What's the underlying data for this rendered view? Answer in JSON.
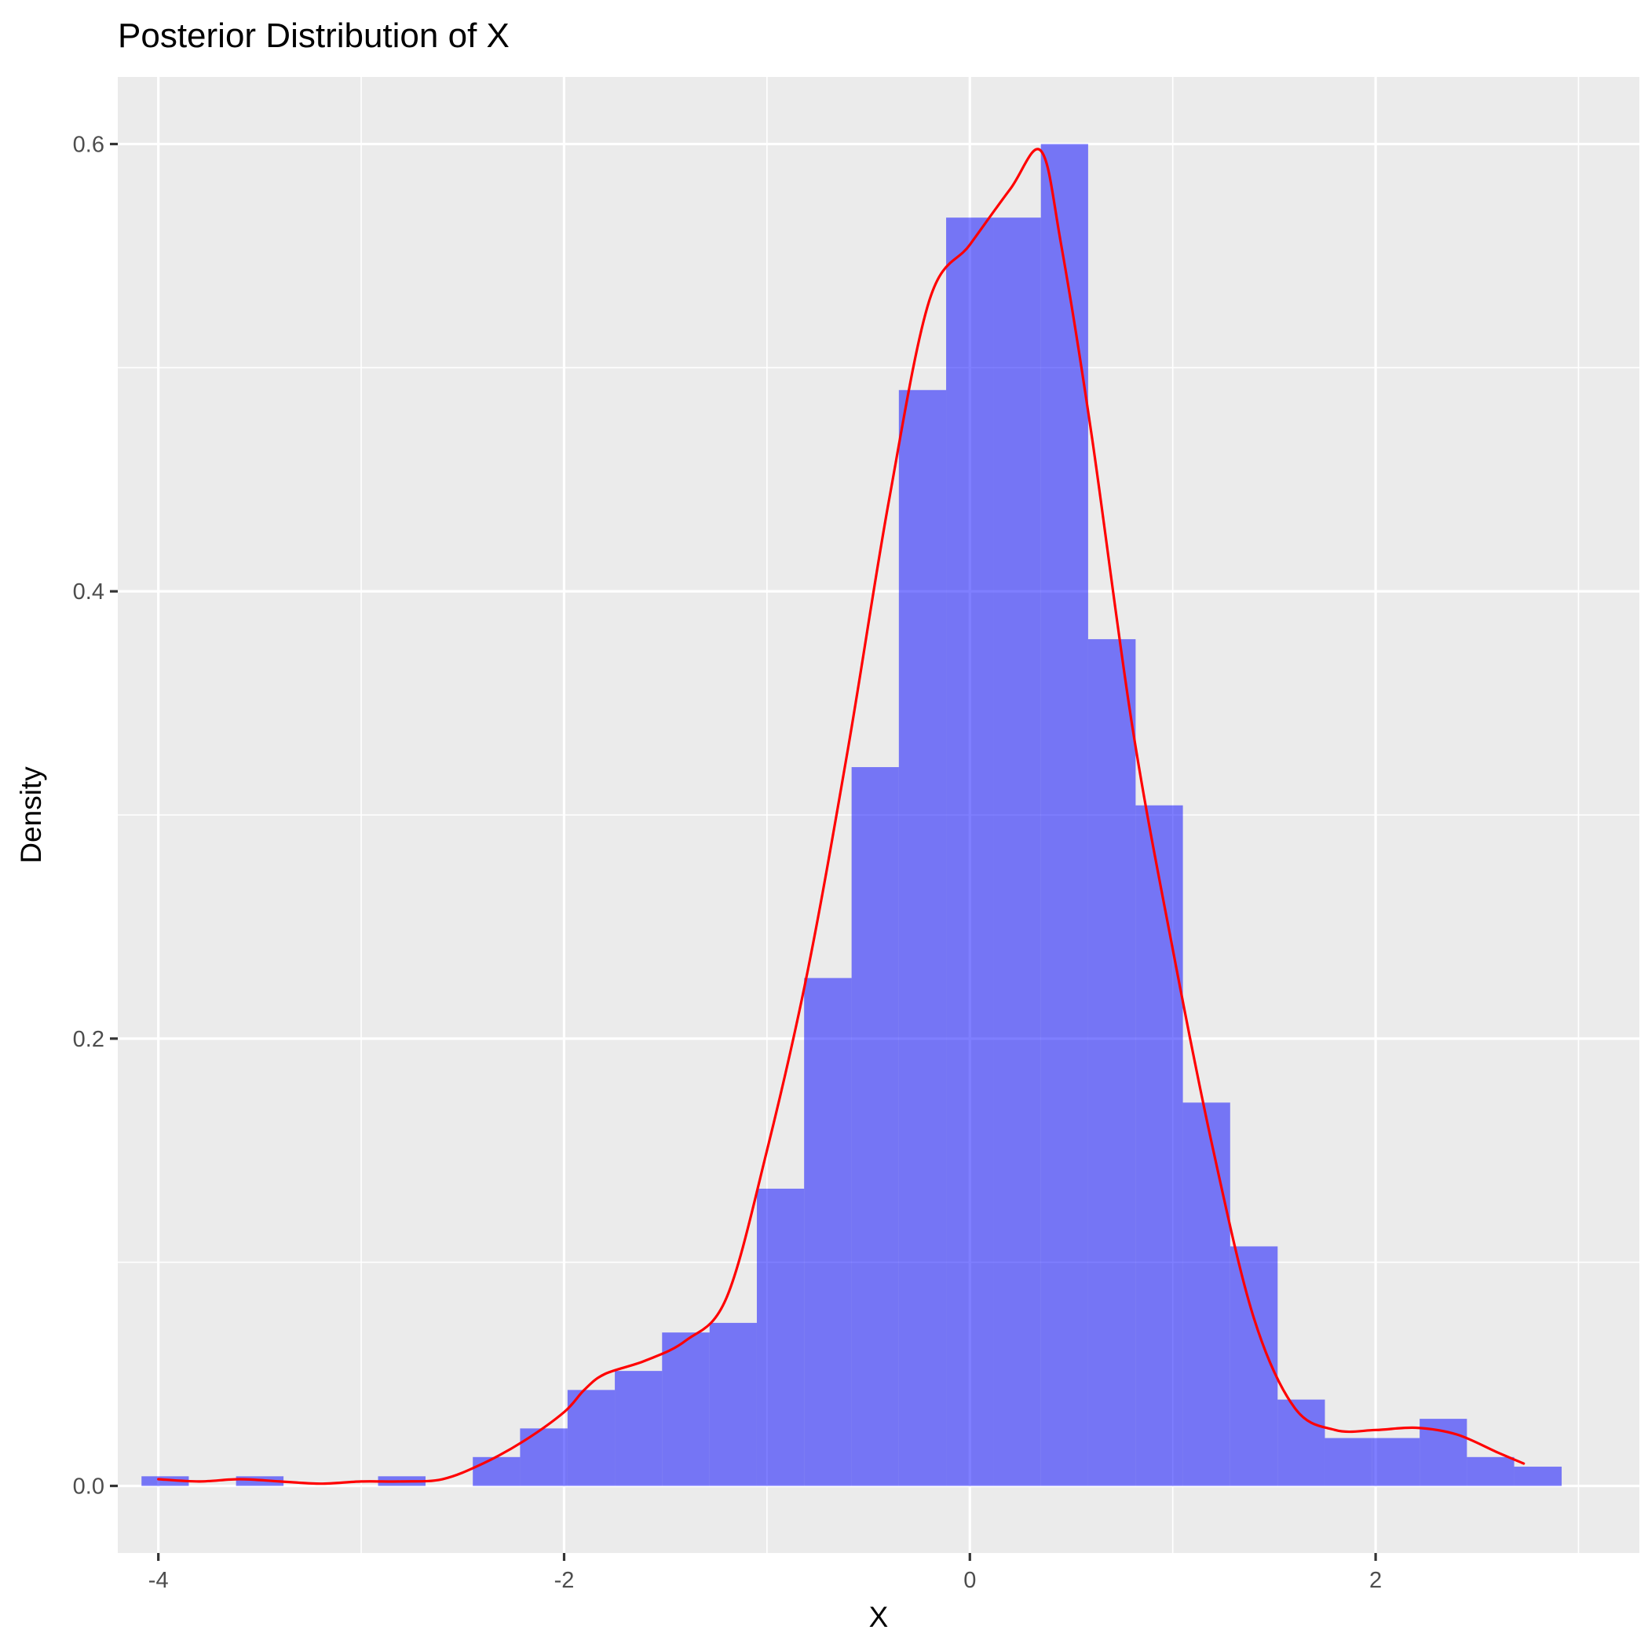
{
  "chart_data": {
    "type": "histogram",
    "title": "Posterior Distribution of X",
    "xlabel": "X",
    "ylabel": "Density",
    "xlim": [
      -4.2,
      3.3
    ],
    "ylim": [
      -0.03,
      0.63
    ],
    "x_ticks": [
      -4,
      -2,
      0,
      2
    ],
    "x_tick_labels": [
      "-4",
      "-2",
      "0",
      "2"
    ],
    "x_minor_ticks": [
      -3,
      -1,
      1,
      3
    ],
    "y_ticks": [
      0.0,
      0.2,
      0.4,
      0.6
    ],
    "y_tick_labels": [
      "0.0",
      "0.2",
      "0.4",
      "0.6"
    ],
    "y_minor_ticks": [
      0.1,
      0.3,
      0.5
    ],
    "grid": true,
    "bin_width": 0.2333,
    "bins": [
      {
        "x0": -4.083,
        "x1": -3.85,
        "density": 0.0043
      },
      {
        "x0": -3.617,
        "x1": -3.383,
        "density": 0.0043
      },
      {
        "x0": -2.917,
        "x1": -2.683,
        "density": 0.0043
      },
      {
        "x0": -2.45,
        "x1": -2.217,
        "density": 0.0129
      },
      {
        "x0": -2.217,
        "x1": -1.983,
        "density": 0.0257
      },
      {
        "x0": -1.983,
        "x1": -1.75,
        "density": 0.0429
      },
      {
        "x0": -1.75,
        "x1": -1.517,
        "density": 0.0514
      },
      {
        "x0": -1.517,
        "x1": -1.283,
        "density": 0.0686
      },
      {
        "x0": -1.283,
        "x1": -1.05,
        "density": 0.0729
      },
      {
        "x0": -1.05,
        "x1": -0.817,
        "density": 0.1329
      },
      {
        "x0": -0.817,
        "x1": -0.583,
        "density": 0.2271
      },
      {
        "x0": -0.583,
        "x1": -0.35,
        "density": 0.3214
      },
      {
        "x0": -0.35,
        "x1": -0.117,
        "density": 0.49
      },
      {
        "x0": -0.117,
        "x1": 0.117,
        "density": 0.5671
      },
      {
        "x0": 0.117,
        "x1": 0.35,
        "density": 0.5671
      },
      {
        "x0": 0.35,
        "x1": 0.583,
        "density": 0.6
      },
      {
        "x0": 0.583,
        "x1": 0.817,
        "density": 0.3786
      },
      {
        "x0": 0.817,
        "x1": 1.05,
        "density": 0.3043
      },
      {
        "x0": 1.05,
        "x1": 1.283,
        "density": 0.1714
      },
      {
        "x0": 1.283,
        "x1": 1.517,
        "density": 0.1071
      },
      {
        "x0": 1.517,
        "x1": 1.75,
        "density": 0.0386
      },
      {
        "x0": 1.75,
        "x1": 1.983,
        "density": 0.0214
      },
      {
        "x0": 1.983,
        "x1": 2.217,
        "density": 0.0214
      },
      {
        "x0": 2.217,
        "x1": 2.45,
        "density": 0.03
      },
      {
        "x0": 2.45,
        "x1": 2.683,
        "density": 0.0129
      },
      {
        "x0": 2.683,
        "x1": 2.917,
        "density": 0.0086
      }
    ],
    "density_curve": {
      "x": [
        -4.0,
        -3.8,
        -3.6,
        -3.4,
        -3.2,
        -3.0,
        -2.8,
        -2.6,
        -2.4,
        -2.2,
        -2.0,
        -1.9,
        -1.8,
        -1.6,
        -1.4,
        -1.2,
        -1.0,
        -0.8,
        -0.6,
        -0.4,
        -0.2,
        0.0,
        0.2,
        0.35,
        0.45,
        0.6,
        0.8,
        1.0,
        1.2,
        1.4,
        1.6,
        1.8,
        2.0,
        2.2,
        2.4,
        2.6,
        2.73
      ],
      "y": [
        0.003,
        0.002,
        0.003,
        0.002,
        0.001,
        0.002,
        0.002,
        0.003,
        0.01,
        0.02,
        0.033,
        0.043,
        0.05,
        0.056,
        0.065,
        0.084,
        0.15,
        0.23,
        0.33,
        0.44,
        0.53,
        0.555,
        0.58,
        0.597,
        0.555,
        0.47,
        0.34,
        0.24,
        0.15,
        0.075,
        0.035,
        0.025,
        0.025,
        0.026,
        0.023,
        0.015,
        0.01
      ]
    },
    "colors": {
      "bar_fill": "#0000FF",
      "density_line": "#FF0000",
      "panel_background": "#EBEBEB",
      "grid": "#FFFFFF"
    }
  }
}
